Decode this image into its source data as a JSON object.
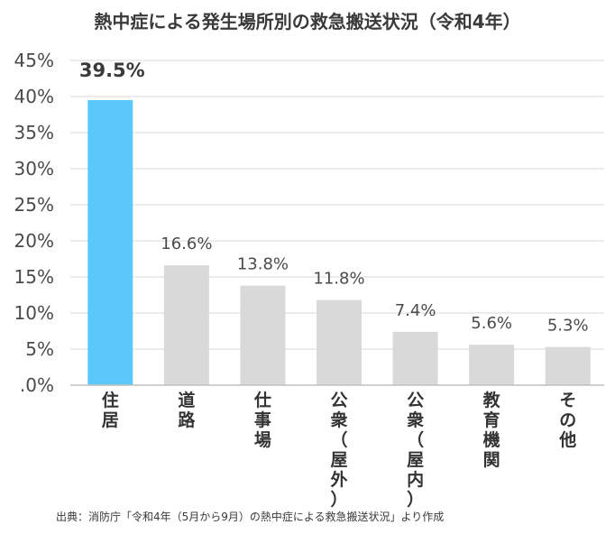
{
  "title": "熱中症による発生場所別の救急搬送状況（令和4年）",
  "source": "出典：消防庁「令和4年（5月から9月）の熱中症による救急搬送状況」より作成",
  "colors": {
    "highlight": "#5bc8fc",
    "bar": "#d9d9d9",
    "grid": "#d9d9d9",
    "axis": "#bfbfbf"
  },
  "chart_data": {
    "type": "bar",
    "title": "熱中症による発生場所別の救急搬送状況（令和4年）",
    "xlabel": "",
    "ylabel": "",
    "ylim": [
      0,
      45
    ],
    "yticks": [
      0,
      5,
      10,
      15,
      20,
      25,
      30,
      35,
      40,
      45
    ],
    "ytick_labels": [
      ".0%",
      "5%",
      "10%",
      "15%",
      "20%",
      "25%",
      "30%",
      "35%",
      "40%",
      "45%"
    ],
    "grid": true,
    "legend": "none",
    "categories": [
      "住居",
      "道路",
      "仕事場",
      "公衆（屋外）",
      "公衆（屋内）",
      "教育機関",
      "その他"
    ],
    "values": [
      39.5,
      16.6,
      13.8,
      11.8,
      7.4,
      5.6,
      5.3
    ],
    "value_labels": [
      "39.5%",
      "16.6%",
      "13.8%",
      "11.8%",
      "7.4%",
      "5.6%",
      "5.3%"
    ],
    "highlight_index": 0
  }
}
